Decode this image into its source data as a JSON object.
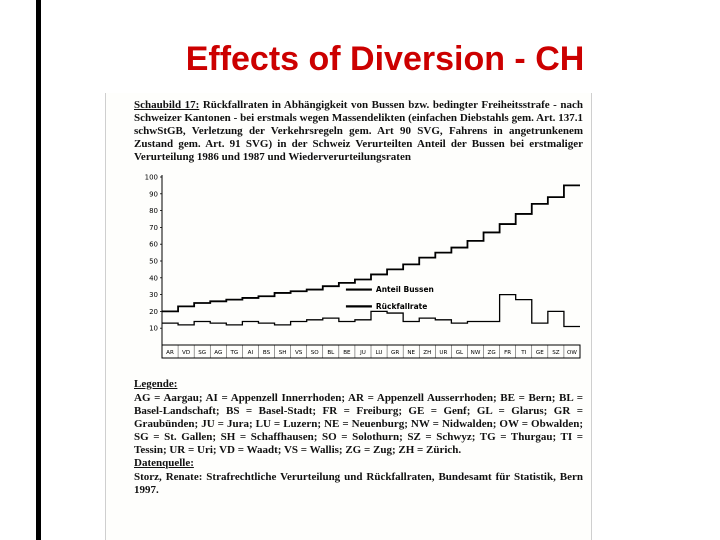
{
  "slide": {
    "title": "Effects of Diversion - CH",
    "title_color": "#cc0000"
  },
  "figure": {
    "heading_label": "Schaubild 17:",
    "heading_text": "Rückfallraten in Abhängigkeit von Bussen bzw. bedingter Freiheitsstrafe - nach Schweizer Kantonen - bei erstmals wegen Massendelikten (einfachen Diebstahls gem. Art. 137.1 schwStGB, Verletzung der Verkehrsregeln gem. Art 90 SVG, Fahrens in angetrunkenem Zustand gem. Art. 91 SVG) in der Schweiz Verurteilten Anteil der Bussen bei erstmaliger Verurteilung 1986 und 1987 und Wiederverurteilungsraten",
    "legend_label": "Legende:",
    "legend_text": "AG = Aargau; AI = Appenzell Innerrhoden; AR = Appenzell Ausserrhoden; BE = Bern; BL = Basel-Landschaft; BS = Basel-Stadt; FR = Freiburg; GE = Genf; GL = Glarus; GR = Graubünden; JU = Jura; LU = Luzern; NE = Neuenburg; NW = Nidwalden; OW = Obwalden; SG = St. Gallen; SH = Schaffhausen; SO = Solothurn; SZ = Schwyz; TG = Thurgau; TI = Tessin; UR = Uri; VD = Waadt; VS = Wallis; ZG = Zug; ZH = Zürich.",
    "source_label": "Datenquelle:",
    "source_text": "Storz, Renate: Strafrechtliche Verurteilung und Rückfallraten, Bundesamt für Statistik, Bern 1997."
  },
  "chart_data": {
    "type": "line",
    "line_style": "step",
    "title": "Schaubild 17",
    "categories": [
      "AR",
      "VD",
      "SG",
      "AG",
      "TG",
      "AI",
      "BS",
      "SH",
      "VS",
      "SO",
      "BL",
      "BE",
      "JU",
      "LU",
      "GR",
      "NE",
      "ZH",
      "UR",
      "GL",
      "NW",
      "ZG",
      "FR",
      "TI",
      "GE",
      "SZ",
      "OW"
    ],
    "series": [
      {
        "name": "Anteil Bussen",
        "values": [
          20,
          23,
          25,
          26,
          27,
          28,
          29,
          31,
          32,
          33,
          35,
          37,
          39,
          42,
          45,
          48,
          52,
          55,
          58,
          62,
          67,
          72,
          78,
          84,
          88,
          95
        ]
      },
      {
        "name": "Rückfallrate",
        "values": [
          13,
          12,
          14,
          13,
          12,
          14,
          13,
          12,
          14,
          15,
          16,
          14,
          15,
          20,
          19,
          14,
          16,
          15,
          13,
          14,
          14,
          30,
          27,
          13,
          20,
          11
        ]
      }
    ],
    "ylim": [
      0,
      100
    ],
    "yticks": [
      10,
      20,
      30,
      40,
      50,
      60,
      70,
      80,
      90,
      100
    ],
    "grid": "off",
    "legend_position": "inside-middle"
  }
}
